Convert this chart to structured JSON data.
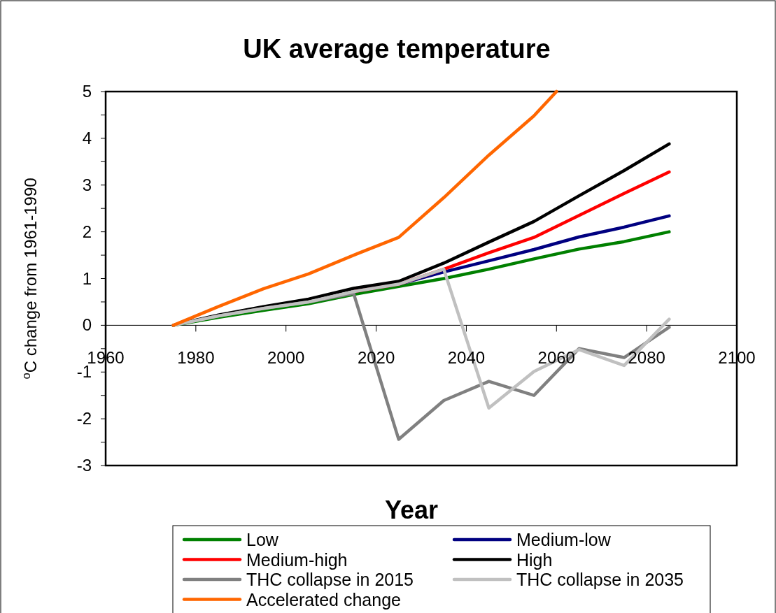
{
  "chart_data": {
    "type": "line",
    "title": "UK average temperature",
    "xlabel": "Year",
    "ylabel": "$^{o}$C change from 1961-1990",
    "x": [
      1975,
      1985,
      1995,
      2005,
      2015,
      2025,
      2035,
      2045,
      2055,
      2065,
      2075,
      2085
    ],
    "series": [
      {
        "name": "Low",
        "color": "#008000",
        "values": [
          0,
          0.17,
          0.32,
          0.46,
          0.66,
          0.83,
          1.0,
          1.2,
          1.42,
          1.63,
          1.79,
          2.0
        ]
      },
      {
        "name": "Medium-low",
        "color": "#000080",
        "values": [
          null,
          null,
          null,
          null,
          0.72,
          0.88,
          1.14,
          1.38,
          1.62,
          1.89,
          2.1,
          2.34
        ]
      },
      {
        "name": "Medium-high",
        "color": "#ff0000",
        "values": [
          null,
          null,
          null,
          null,
          0.72,
          0.88,
          1.2,
          1.55,
          1.88,
          2.35,
          2.82,
          3.28
        ]
      },
      {
        "name": "High",
        "color": "#000000",
        "values": [
          0,
          0.22,
          0.4,
          0.56,
          0.79,
          0.94,
          1.33,
          1.78,
          2.22,
          2.77,
          3.31,
          3.88
        ]
      },
      {
        "name": "THC collapse in 2015",
        "color": "#808080",
        "values": [
          0,
          0.2,
          0.36,
          0.5,
          0.68,
          -2.44,
          -1.61,
          -1.2,
          -1.5,
          -0.5,
          -0.69,
          -0.04
        ]
      },
      {
        "name": "THC collapse in 2035",
        "color": "#c0c0c0",
        "values": [
          0,
          0.2,
          0.36,
          0.5,
          0.72,
          0.88,
          1.2,
          -1.77,
          -0.99,
          -0.52,
          -0.86,
          0.13
        ]
      },
      {
        "name": "Accelerated change",
        "color": "#ff6600",
        "x": [
          1975,
          1985,
          1995,
          2005,
          2015,
          2025,
          2035,
          2045,
          2055,
          2060
        ],
        "values": [
          0,
          0.4,
          0.78,
          1.1,
          1.5,
          1.88,
          2.73,
          3.64,
          4.48,
          5
        ]
      }
    ],
    "xlim": [
      1960,
      2100
    ],
    "xticks": [
      1960,
      1980,
      2000,
      2020,
      2040,
      2060,
      2080,
      2100
    ],
    "ylim": [
      -3,
      5
    ],
    "yticks": [
      -3,
      {
        "value": -2.5,
        "label": null
      },
      -2,
      {
        "value": -1.5,
        "label": null
      },
      -1,
      {
        "value": -0.5,
        "label": null
      },
      0,
      {
        "value": 0.5,
        "label": null
      },
      1,
      {
        "value": 1.5,
        "label": null
      },
      2,
      {
        "value": 2.5,
        "label": null
      },
      3,
      {
        "value": 3.5,
        "label": null
      },
      4,
      {
        "value": 4.5,
        "label": null
      },
      5
    ],
    "grid": false,
    "legend": "bottom",
    "marker": "none",
    "line_style": "solid"
  }
}
